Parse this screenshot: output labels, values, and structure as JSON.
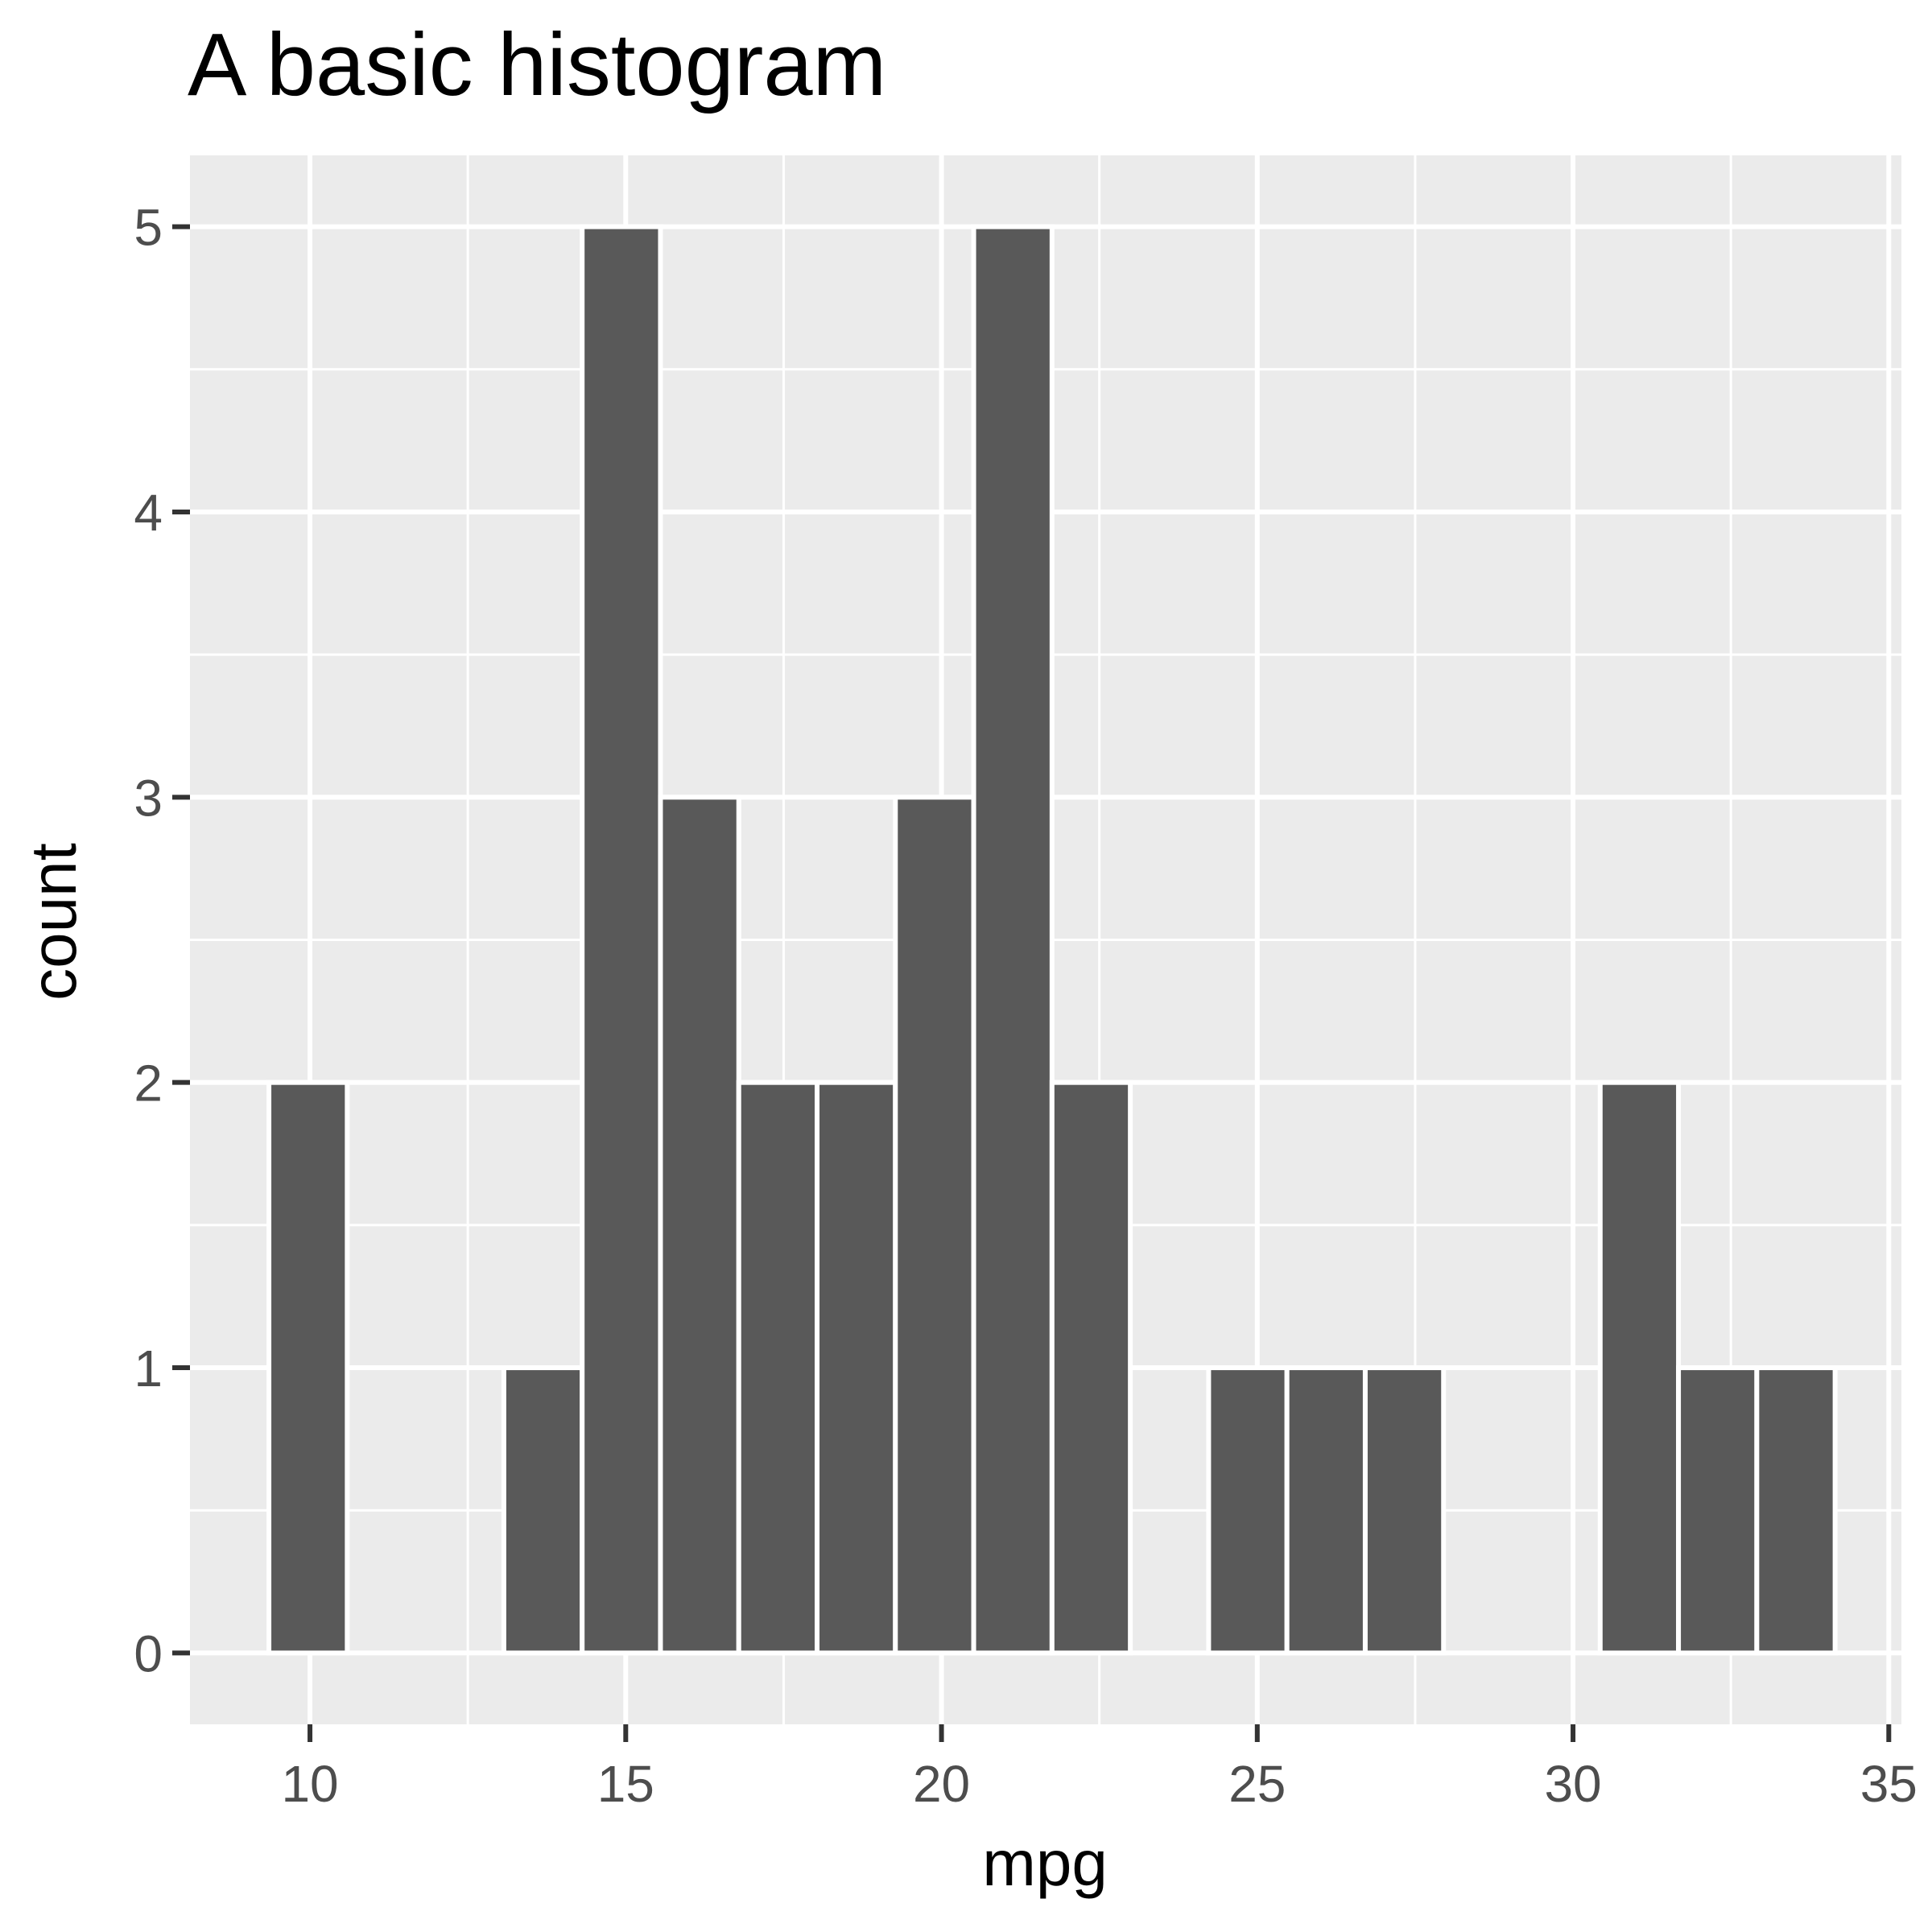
{
  "chart_data": {
    "type": "bar",
    "title": "A basic histogram",
    "xlabel": "mpg",
    "ylabel": "count",
    "xlim": [
      8.1,
      35.2
    ],
    "ylim": [
      -0.25,
      5.25
    ],
    "x_ticks": [
      10,
      15,
      20,
      25,
      30,
      35
    ],
    "y_ticks": [
      0,
      1,
      2,
      3,
      4,
      5
    ],
    "x_minor_ticks": [
      12.5,
      17.5,
      22.5,
      27.5,
      32.5
    ],
    "y_minor_ticks": [
      0.5,
      1.5,
      2.5,
      3.5,
      4.5
    ],
    "grid": true,
    "bins": [
      {
        "x_start": 9.35,
        "x_end": 10.59,
        "count": 2
      },
      {
        "x_start": 10.59,
        "x_end": 11.83,
        "count": 0
      },
      {
        "x_start": 11.83,
        "x_end": 13.07,
        "count": 0
      },
      {
        "x_start": 13.07,
        "x_end": 14.31,
        "count": 1
      },
      {
        "x_start": 14.31,
        "x_end": 15.55,
        "count": 5
      },
      {
        "x_start": 15.55,
        "x_end": 16.79,
        "count": 3
      },
      {
        "x_start": 16.79,
        "x_end": 18.03,
        "count": 2
      },
      {
        "x_start": 18.03,
        "x_end": 19.27,
        "count": 2
      },
      {
        "x_start": 19.27,
        "x_end": 20.51,
        "count": 3
      },
      {
        "x_start": 20.51,
        "x_end": 21.75,
        "count": 5
      },
      {
        "x_start": 21.75,
        "x_end": 22.99,
        "count": 2
      },
      {
        "x_start": 22.99,
        "x_end": 24.23,
        "count": 0
      },
      {
        "x_start": 24.23,
        "x_end": 25.47,
        "count": 1
      },
      {
        "x_start": 25.47,
        "x_end": 26.71,
        "count": 1
      },
      {
        "x_start": 26.71,
        "x_end": 27.95,
        "count": 1
      },
      {
        "x_start": 27.95,
        "x_end": 29.19,
        "count": 0
      },
      {
        "x_start": 29.19,
        "x_end": 30.43,
        "count": 0
      },
      {
        "x_start": 30.43,
        "x_end": 31.67,
        "count": 2
      },
      {
        "x_start": 31.67,
        "x_end": 32.91,
        "count": 1
      },
      {
        "x_start": 32.91,
        "x_end": 34.15,
        "count": 1
      }
    ],
    "colors": {
      "panel_background": "#ebebeb",
      "grid": "#ffffff",
      "bar_fill": "#595959",
      "bar_outline": "#ffffff",
      "tick_mark": "#333333",
      "tick_text": "#4d4d4d",
      "text": "#000000"
    }
  }
}
